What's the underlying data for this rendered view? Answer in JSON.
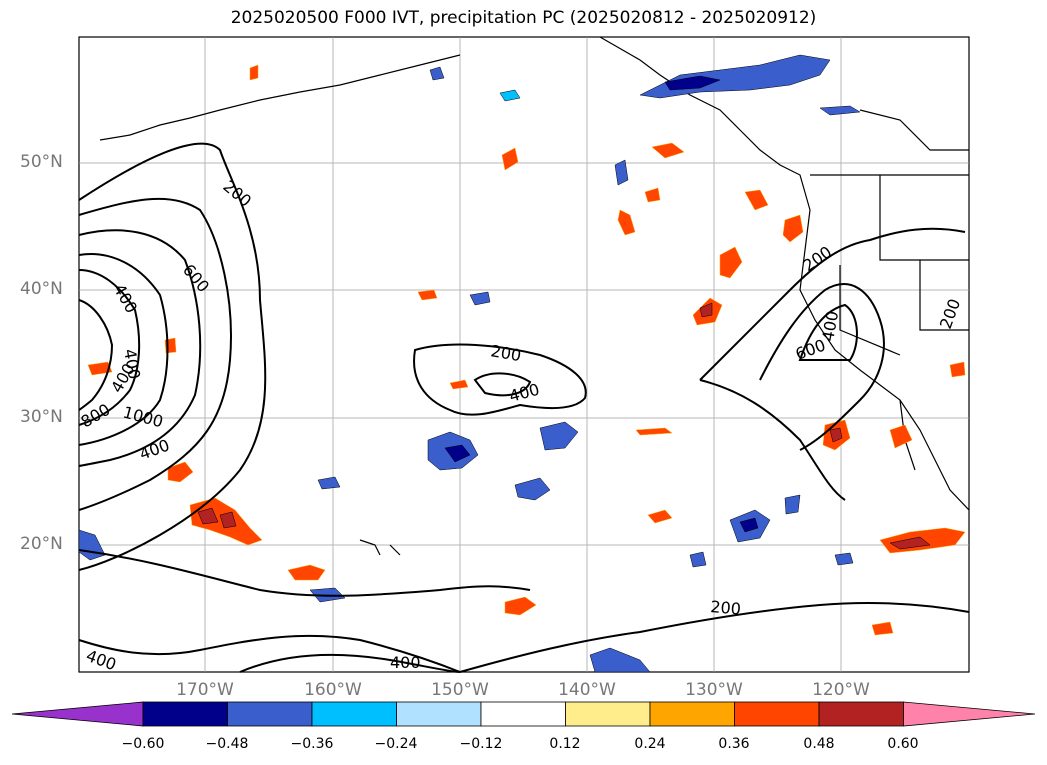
{
  "title": "2025020500 F000 IVT, precipitation PC (2025020812 - 2025020912)",
  "map": {
    "lat_labels": [
      "50°N",
      "40°N",
      "30°N",
      "20°N"
    ],
    "lon_labels": [
      "170°W",
      "160°W",
      "150°W",
      "140°W",
      "130°W",
      "120°W"
    ],
    "ivt_contour_labels": [
      "200",
      "400",
      "600",
      "400",
      "400",
      "800",
      "1000",
      "400",
      "200",
      "400",
      "200",
      "400",
      "400",
      "200",
      "600",
      "400",
      "200"
    ]
  },
  "colorbar": {
    "ticks": [
      "−0.60",
      "−0.48",
      "−0.36",
      "−0.24",
      "−0.12",
      "0.12",
      "0.24",
      "0.36",
      "0.48",
      "0.60"
    ],
    "colors": [
      "#9932cc",
      "#00008b",
      "#3a5fcd",
      "#00bfff",
      "#b0e2ff",
      "#ffffff",
      "#ffec8b",
      "#ffa500",
      "#ff4500",
      "#b22222",
      "#ff82ab"
    ]
  }
}
